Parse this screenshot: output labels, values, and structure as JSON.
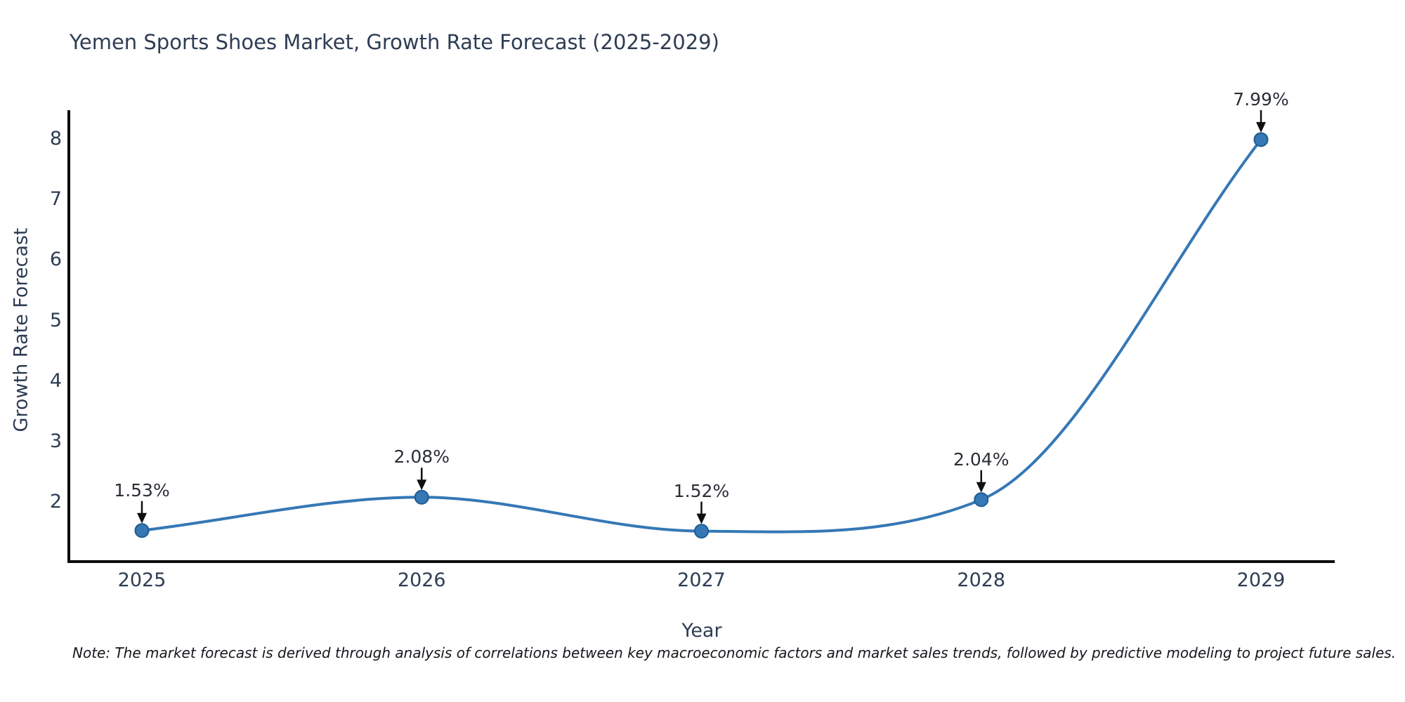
{
  "chart_data": {
    "type": "line",
    "title": "Yemen Sports Shoes Market, Growth Rate Forecast (2025-2029)",
    "xlabel": "Year",
    "ylabel": "Growth Rate Forecast",
    "x": [
      2025,
      2026,
      2027,
      2028,
      2029
    ],
    "series": [
      {
        "name": "Growth Rate Forecast",
        "values": [
          1.53,
          2.08,
          1.52,
          2.04,
          7.99
        ]
      }
    ],
    "point_labels": [
      "1.53%",
      "2.08%",
      "1.52%",
      "2.04%",
      "7.99%"
    ],
    "yticks": [
      2,
      3,
      4,
      5,
      6,
      7,
      8
    ],
    "ylim": [
      1.02,
      8.47
    ],
    "curve": "smooth",
    "grid": false,
    "legend": "none",
    "line_color": "#3578b5",
    "marker_color": "#3578b5",
    "marker_edge_color": "#1e5c92",
    "arrow_color": "#0f0f0f",
    "axis_color": "#0c0c0c",
    "text_color": "#2e3d54"
  },
  "note": {
    "text": "Note: The market forecast is derived through analysis of correlations between key macroeconomic factors and market sales trends, followed by predictive modeling to project future sales."
  }
}
